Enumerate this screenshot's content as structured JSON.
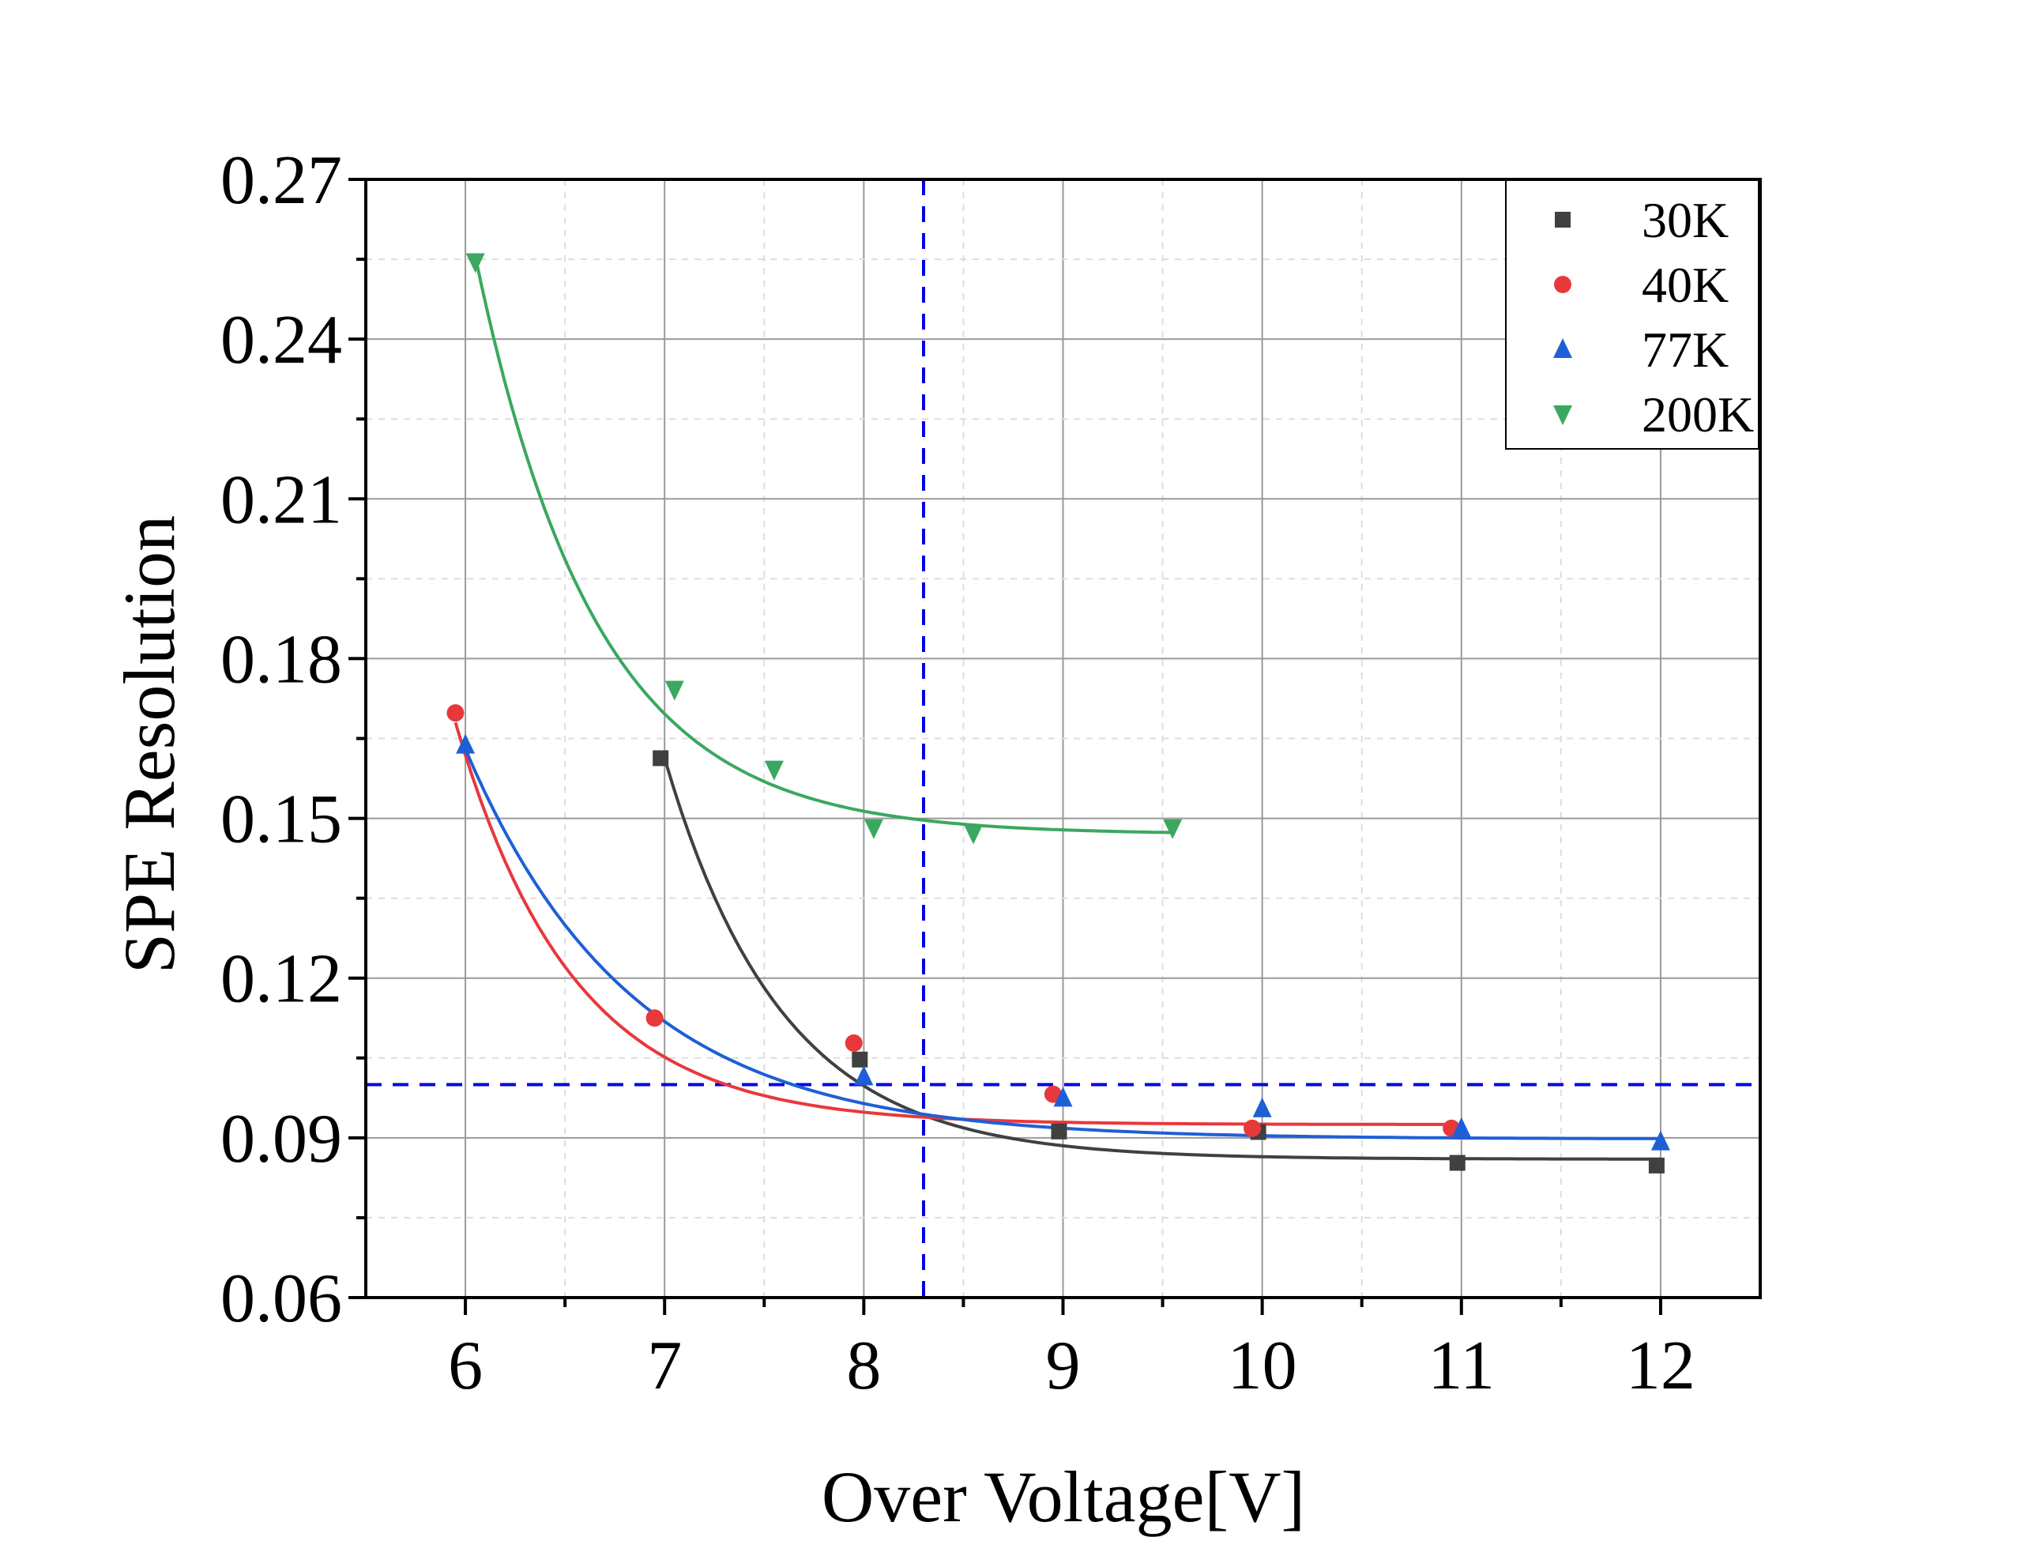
{
  "chart_data": {
    "type": "scatter",
    "xlabel": "Over Voltage[V]",
    "ylabel": "SPE Resolution",
    "xlim": [
      5.5,
      12.5
    ],
    "ylim": [
      0.06,
      0.27
    ],
    "xticks": [
      6,
      7,
      8,
      9,
      10,
      11,
      12
    ],
    "xtick_labels": [
      "6",
      "7",
      "8",
      "9",
      "10",
      "11",
      "12"
    ],
    "yticks": [
      0.06,
      0.09,
      0.12,
      0.15,
      0.18,
      0.21,
      0.24,
      0.27
    ],
    "ytick_labels": [
      "0.06",
      "0.09",
      "0.12",
      "0.15",
      "0.18",
      "0.21",
      "0.24",
      "0.27"
    ],
    "grid": true,
    "legend_position": "top-right",
    "reference_lines": [
      {
        "orientation": "vertical",
        "x": 8.3,
        "color": "#0000e6",
        "style": "dashed"
      },
      {
        "orientation": "horizontal",
        "y": 0.1,
        "color": "#0000e6",
        "style": "dashed"
      }
    ],
    "series": [
      {
        "name": "30K",
        "marker": "square",
        "color": "#404040",
        "x": [
          6.98,
          7.98,
          8.98,
          9.98,
          10.98,
          11.98
        ],
        "y": [
          0.1613,
          0.1047,
          0.0912,
          0.0911,
          0.0853,
          0.0848
        ],
        "fit": {
          "a": 0.086,
          "b": 0.0753,
          "c": 1.7,
          "x0": 7.0,
          "x_end": 12.0
        }
      },
      {
        "name": "40K",
        "marker": "circle",
        "color": "#e8383c",
        "x": [
          5.95,
          6.95,
          7.95,
          8.95,
          9.95,
          10.95
        ],
        "y": [
          0.1698,
          0.1125,
          0.1078,
          0.0982,
          0.0918,
          0.0918
        ],
        "fit": {
          "a": 0.0925,
          "b": 0.0755,
          "c": 1.7,
          "x0": 5.95,
          "x_end": 10.95
        }
      },
      {
        "name": "77K",
        "marker": "triangle-up",
        "color": "#1f5fd6",
        "x": [
          6.0,
          8.0,
          9.0,
          10.0,
          11.0,
          12.0
        ],
        "y": [
          0.1638,
          0.1015,
          0.0975,
          0.0955,
          0.0918,
          0.0893
        ],
        "fit": {
          "a": 0.0898,
          "b": 0.0732,
          "c": 1.2,
          "x0": 6.0,
          "x_end": 12.0
        }
      },
      {
        "name": "200K",
        "marker": "triangle-down",
        "color": "#3aa85f",
        "x": [
          6.05,
          7.05,
          7.55,
          8.05,
          8.55,
          9.55
        ],
        "y": [
          0.2545,
          0.1742,
          0.1592,
          0.1482,
          0.1472,
          0.1482
        ],
        "fit": {
          "a": 0.147,
          "b": 0.1085,
          "c": 1.65,
          "x0": 6.05,
          "x_end": 9.55
        }
      }
    ]
  }
}
